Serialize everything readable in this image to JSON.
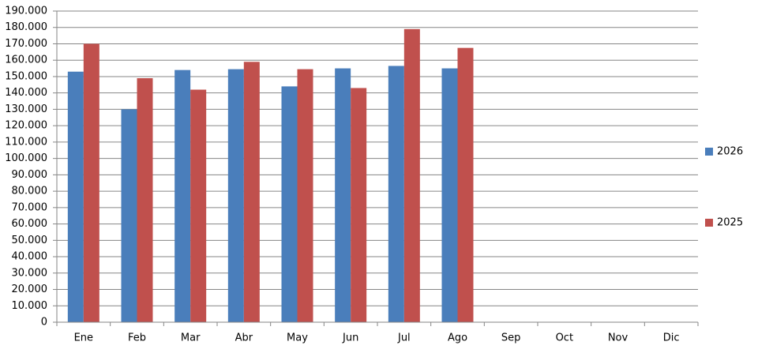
{
  "chart_data": {
    "type": "bar",
    "categories": [
      "Ene",
      "Feb",
      "Mar",
      "Abr",
      "May",
      "Jun",
      "Jul",
      "Ago",
      "Sep",
      "Oct",
      "Nov",
      "Dic"
    ],
    "series": [
      {
        "name": "2026",
        "color": "#4a7ebb",
        "values": [
          153000,
          130000,
          154000,
          154500,
          144000,
          155000,
          156500,
          155000,
          null,
          null,
          null,
          null
        ]
      },
      {
        "name": "2025",
        "color": "#c0504d",
        "values": [
          170000,
          149000,
          142000,
          159000,
          154500,
          143000,
          179000,
          167500,
          null,
          null,
          null,
          null
        ]
      }
    ],
    "ylim": [
      0,
      190000
    ],
    "yticks": [
      0,
      {
        "value": 10000,
        "label": "10.000"
      },
      {
        "value": 20000,
        "label": "20.000"
      },
      {
        "value": 30000,
        "label": "30.000"
      },
      {
        "value": 40000,
        "label": "40.000"
      },
      {
        "value": 50000,
        "label": "50.000"
      },
      {
        "value": 60000,
        "label": "60.000"
      },
      {
        "value": 70000,
        "label": "70.000"
      },
      {
        "value": 80000,
        "label": "80.000"
      },
      {
        "value": 90000,
        "label": "90.000"
      },
      {
        "value": 100000,
        "label": "100.000"
      },
      {
        "value": 110000,
        "label": "110.000"
      },
      {
        "value": 120000,
        "label": "120.000"
      },
      {
        "value": 130000,
        "label": "130.000"
      },
      {
        "value": 140000,
        "label": "140.000"
      },
      {
        "value": 150000,
        "label": "150.000"
      },
      {
        "value": 160000,
        "label": "160.000"
      },
      {
        "value": 170000,
        "label": "170.000"
      },
      {
        "value": 180000,
        "label": "180.000"
      },
      {
        "value": 190000,
        "label": "190.000"
      }
    ],
    "grid": true,
    "legend": "right"
  }
}
